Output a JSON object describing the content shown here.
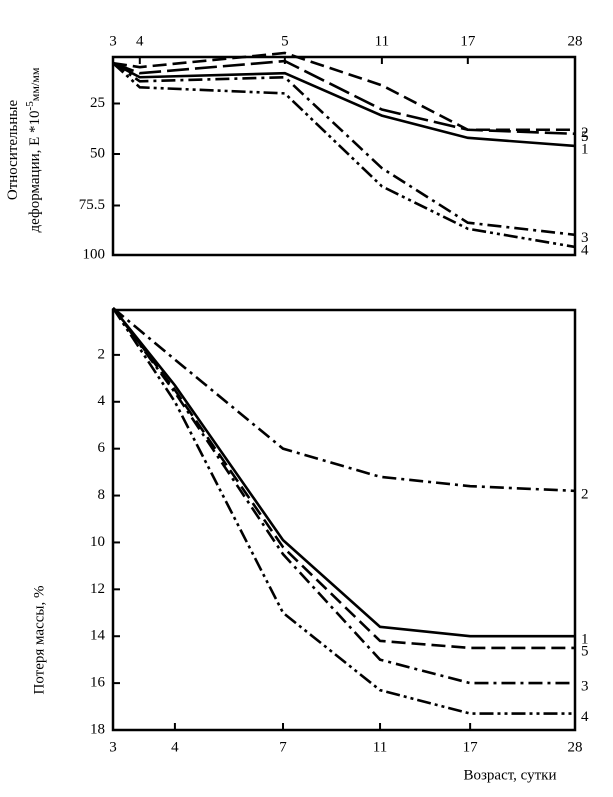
{
  "chart_data": [
    {
      "type": "line",
      "y_label": [
        "Относительные",
        "деформации, E *10",
        "-5",
        "мм/мм"
      ],
      "categories": [
        "3",
        "4",
        "5",
        "11",
        "17",
        "28"
      ],
      "ylim": [
        0,
        100
      ],
      "yticks": [
        25,
        50,
        75.5,
        100
      ],
      "y_inverted": true,
      "x_axis_position": "top",
      "series": [
        {
          "name": "1",
          "color": "#000000",
          "dash": "solid",
          "values": [
            5,
            12,
            10,
            31,
            42,
            46
          ]
        },
        {
          "name": "2",
          "color": "#000000",
          "dash": "dashed",
          "values": [
            5,
            7,
            0,
            16,
            38,
            38
          ]
        },
        {
          "name": "3",
          "color": "#000000",
          "dash": "dashdot",
          "values": [
            5,
            14,
            12,
            57,
            84,
            90
          ]
        },
        {
          "name": "4",
          "color": "#000000",
          "dash": "dashdotdot",
          "values": [
            5,
            17,
            20,
            66,
            87,
            96
          ]
        },
        {
          "name": "5",
          "color": "#000000",
          "dash": "longdash",
          "values": [
            5,
            10,
            4,
            28,
            38,
            40
          ]
        }
      ]
    },
    {
      "type": "line",
      "y_label": [
        "Потеря массы, %"
      ],
      "x_label": "Возраст, сутки",
      "categories": [
        "3",
        "4",
        "7",
        "11",
        "17",
        "28"
      ],
      "ylim": [
        0,
        18
      ],
      "yticks": [
        2,
        4,
        6,
        8,
        10,
        12,
        14,
        16,
        18
      ],
      "y_inverted": true,
      "x_axis_position": "bottom",
      "series": [
        {
          "name": "1",
          "color": "#000000",
          "dash": "solid",
          "values": [
            0,
            3.3,
            9.9,
            13.6,
            14,
            14
          ]
        },
        {
          "name": "2",
          "color": "#000000",
          "dash": "dashdot",
          "values": [
            0,
            2.2,
            6,
            7.2,
            7.6,
            7.8
          ]
        },
        {
          "name": "3",
          "color": "#000000",
          "dash": "dashdot",
          "values": [
            0,
            3.6,
            10.5,
            15,
            16,
            16
          ]
        },
        {
          "name": "4",
          "color": "#000000",
          "dash": "dashdotdot",
          "values": [
            0,
            4,
            13,
            16.3,
            17.3,
            17.3
          ]
        },
        {
          "name": "5",
          "color": "#000000",
          "dash": "dashed",
          "values": [
            0,
            3.5,
            10.2,
            14.2,
            14.5,
            14.5
          ]
        }
      ]
    }
  ]
}
